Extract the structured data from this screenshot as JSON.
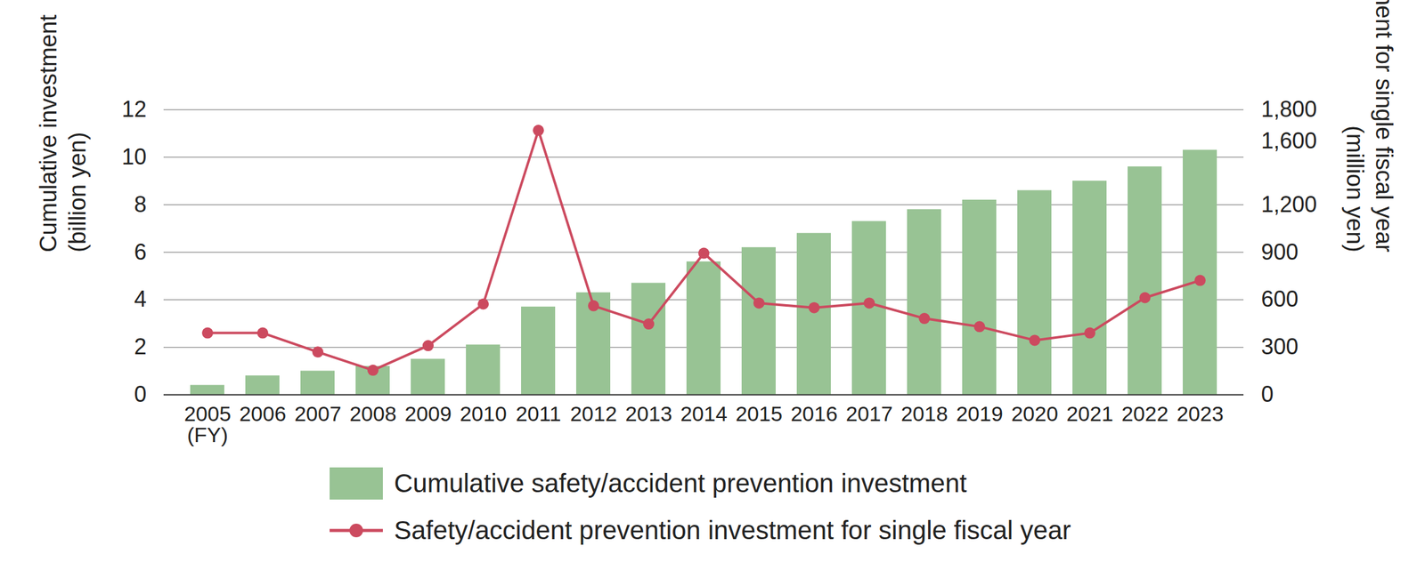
{
  "chart_data": {
    "type": "bar",
    "categories": [
      "2005",
      "2006",
      "2007",
      "2008",
      "2009",
      "2010",
      "2011",
      "2012",
      "2013",
      "2014",
      "2015",
      "2016",
      "2017",
      "2018",
      "2019",
      "2020",
      "2021",
      "2022",
      "2023"
    ],
    "xlabel": "(FY)",
    "ylabel": "Cumulative investment\n(billion yen)",
    "y2label": "Investment for single fiscal year\n(million yen)",
    "series": [
      {
        "name": "Cumulative safety/accident prevention investment",
        "type": "bar",
        "color": "#98c394",
        "values": [
          0.4,
          0.8,
          1.0,
          1.2,
          1.5,
          2.1,
          3.7,
          4.3,
          4.7,
          5.6,
          6.2,
          6.8,
          7.3,
          7.8,
          8.2,
          8.6,
          9.0,
          9.6,
          10.3
        ]
      },
      {
        "name": "Safety/accident prevention investment for single fiscal year",
        "type": "line",
        "color": "#cc4a5f",
        "marker": "circle",
        "axis": "y2",
        "values": [
          390,
          390,
          270,
          155,
          310,
          573,
          1670,
          562,
          447,
          894,
          579,
          550,
          579,
          482,
          430,
          344,
          390,
          613,
          722
        ]
      }
    ],
    "ylim": [
      0,
      12
    ],
    "yticks": [
      0,
      2,
      4,
      6,
      8,
      10,
      12
    ],
    "y2lim": [
      0,
      1800
    ],
    "y2ticks": [
      0,
      300,
      600,
      900,
      {
        "value": 1200,
        "label": "1,200"
      },
      {
        "value": 1600,
        "label": "1,600"
      },
      {
        "value": 1800,
        "label": "1,800"
      }
    ],
    "grid": true,
    "legend": "bottom"
  }
}
